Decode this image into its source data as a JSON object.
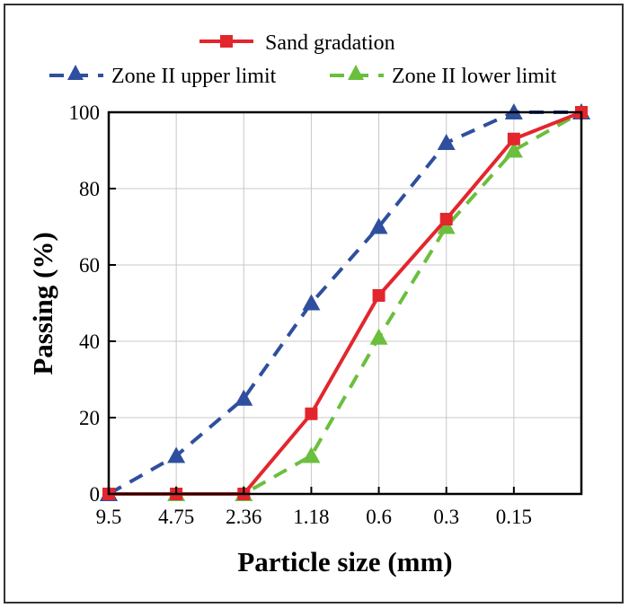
{
  "chart_data": {
    "type": "line",
    "title": "",
    "xlabel": "Particle size (mm)",
    "ylabel": "Passing (%)",
    "ylim": [
      0,
      100
    ],
    "y_ticks": [
      "0",
      "20",
      "40",
      "60",
      "80",
      "100"
    ],
    "categories": [
      "9.5",
      "4.75",
      "2.36",
      "1.18",
      "0.6",
      "0.3",
      "0.15",
      ""
    ],
    "grid": true,
    "legend_position": "top",
    "series": [
      {
        "name": "Sand gradation",
        "values": [
          0,
          0,
          0,
          21,
          52,
          72,
          93,
          100
        ],
        "color": "#e3262d",
        "marker": "square",
        "line_style": "solid"
      },
      {
        "name": "Zone II upper limit",
        "values": [
          0,
          10,
          25,
          50,
          70,
          92,
          100,
          100
        ],
        "color": "#2f4f9e",
        "marker": "triangle",
        "line_style": "dashed"
      },
      {
        "name": "Zone II lower limit",
        "values": [
          0,
          0,
          0,
          10,
          41,
          70,
          90,
          100
        ],
        "color": "#6abf3d",
        "marker": "triangle",
        "line_style": "dashed"
      }
    ]
  }
}
